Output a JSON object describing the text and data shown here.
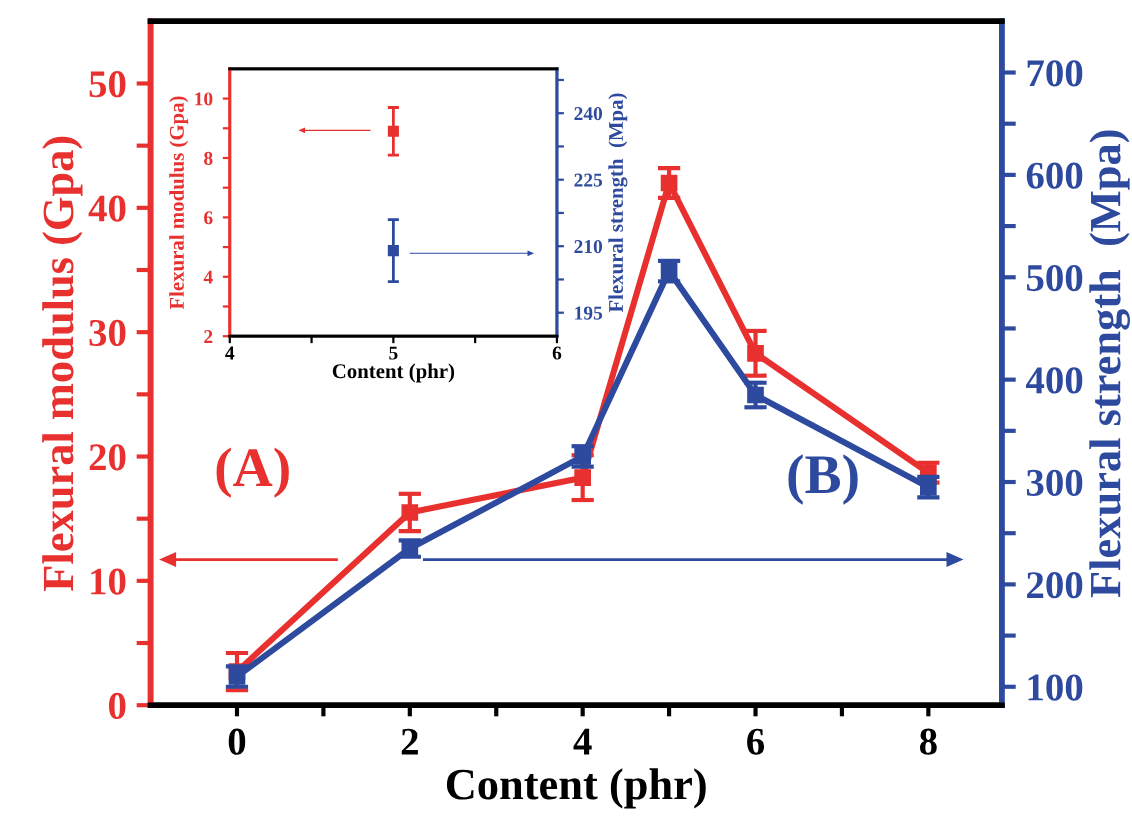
{
  "chart_data": [
    {
      "type": "line",
      "xlabel": "Content (phr)",
      "ylabel": "Flexural modulus (Gpa)",
      "y2label": "Flexural strength  (Mpa)",
      "marker": "square",
      "line_style": "solid",
      "x": [
        0,
        2,
        4,
        5,
        6,
        8
      ],
      "xlim": [
        -1,
        8.85
      ],
      "xticks": [
        0,
        {
          "value": 1,
          "label": null
        },
        2,
        {
          "value": 3,
          "label": null
        },
        4,
        {
          "value": 5,
          "label": null
        },
        6,
        {
          "value": 7,
          "label": null
        },
        8
      ],
      "ylim": [
        0,
        55
      ],
      "yticks": [
        0,
        {
          "value": 5,
          "label": null
        },
        10,
        {
          "value": 15,
          "label": null
        },
        20,
        {
          "value": 25,
          "label": null
        },
        30,
        {
          "value": 35,
          "label": null
        },
        40,
        {
          "value": 45,
          "label": null
        },
        50
      ],
      "y2lim": [
        82,
        750
      ],
      "y2ticks": [
        100,
        {
          "value": 150,
          "label": null
        },
        200,
        {
          "value": 250,
          "label": null
        },
        300,
        {
          "value": 350,
          "label": null
        },
        400,
        {
          "value": 450,
          "label": null
        },
        500,
        {
          "value": 550,
          "label": null
        },
        600,
        {
          "value": 650,
          "label": null
        },
        700
      ],
      "series": [
        {
          "color": "#e8312f",
          "values": [
            2.7,
            15.5,
            18.3,
            42,
            28.3,
            18.7
          ],
          "errors": [
            1.5,
            1.5,
            1.8,
            1.2,
            1.8,
            0.8
          ]
        },
        {
          "color": "#2e4a9e",
          "axis": "y2",
          "values": [
            110,
            235,
            325,
            506,
            385,
            295
          ],
          "errors": [
            10,
            8,
            10,
            10,
            12,
            10
          ]
        }
      ],
      "annotations": [
        "(A)",
        "(B)"
      ]
    },
    {
      "type": "scatter",
      "xlabel": "Content (phr)",
      "ylabel": "Flexural modulus (Gpa)",
      "y2label": "Flexural strength  (Mpa)",
      "marker": "square",
      "x": [
        5
      ],
      "xlim": [
        4,
        6
      ],
      "xticks": [
        4,
        {
          "value": 4.5,
          "label": null
        },
        5,
        {
          "value": 5.5,
          "label": null
        },
        6
      ],
      "ylim": [
        2,
        11
      ],
      "yticks": [
        2,
        {
          "value": 3,
          "label": null
        },
        4,
        {
          "value": 5,
          "label": null
        },
        6,
        {
          "value": 7,
          "label": null
        },
        8,
        {
          "value": 9,
          "label": null
        },
        10
      ],
      "y2lim": [
        189.7,
        250
      ],
      "y2ticks": [
        195,
        {
          "value": 202.5,
          "label": null
        },
        210,
        {
          "value": 217.5,
          "label": null
        },
        225,
        {
          "value": 232.5,
          "label": null
        },
        240,
        {
          "value": 247.5,
          "label": null
        }
      ],
      "series": [
        {
          "color": "#e8312f",
          "values": [
            8.9
          ],
          "errors": [
            0.8
          ]
        },
        {
          "color": "#2e4a9e",
          "axis": "y2",
          "values": [
            209
          ],
          "errors": [
            7
          ]
        }
      ]
    }
  ]
}
